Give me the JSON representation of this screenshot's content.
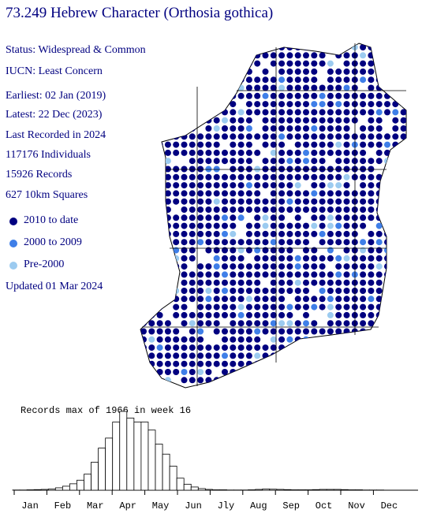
{
  "header": {
    "title": "73.249 Hebrew Character (Orthosia gothica)"
  },
  "info": [
    "Status: Widespread & Common",
    "IUCN: Least Concern",
    "Earliest: 02 Jan (2019)",
    "Latest: 22 Dec (2023)",
    "Last Recorded in 2024",
    "117176 Individuals",
    "15926 Records",
    "627 10km Squares"
  ],
  "legend": [
    {
      "label": "2010 to date",
      "color": "#000080"
    },
    {
      "label": "2000 to 2009",
      "color": "#3f7fe8"
    },
    {
      "label": "Pre-2000",
      "color": "#9ccbf0"
    }
  ],
  "updated": "Updated 01 Mar 2024",
  "chart_data": {
    "type": "bar",
    "title": "Records max of 1966 in week 16",
    "months": [
      "Jan",
      "Feb",
      "Mar",
      "Apr",
      "May",
      "Jun",
      "Jly",
      "Aug",
      "Sep",
      "Oct",
      "Nov",
      "Dec"
    ],
    "values": [
      5,
      5,
      10,
      15,
      20,
      30,
      60,
      100,
      160,
      250,
      400,
      700,
      1050,
      1300,
      1700,
      1966,
      1800,
      1700,
      1700,
      1500,
      1150,
      900,
      600,
      300,
      150,
      80,
      40,
      20,
      10,
      10,
      5,
      5,
      5,
      10,
      20,
      30,
      25,
      20,
      15,
      10,
      10,
      10,
      15,
      20,
      20,
      20,
      15,
      10,
      10,
      5,
      5,
      5
    ]
  }
}
